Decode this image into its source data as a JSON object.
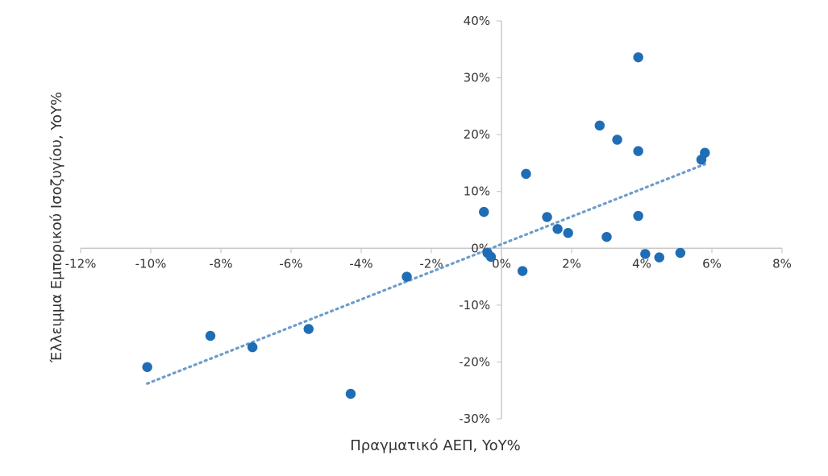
{
  "chart_data": {
    "type": "scatter",
    "xlabel": "Πραγματικό ΑΕΠ, YoY%",
    "ylabel": "Έλλειμμα Εμπορικού Ισοζυγίου, YoY%",
    "xlim": [
      -12,
      8
    ],
    "ylim": [
      -30,
      40
    ],
    "x_ticks": [
      -12,
      -10,
      -8,
      -6,
      -4,
      -2,
      0,
      2,
      4,
      6,
      8
    ],
    "y_ticks": [
      -30,
      -20,
      -10,
      0,
      10,
      20,
      30,
      40
    ],
    "x_tick_labels": [
      "-12%",
      "-10%",
      "-8%",
      "-6%",
      "-4%",
      "-2%",
      "0%",
      "2%",
      "4%",
      "6%",
      "8%"
    ],
    "y_tick_labels": [
      "-30%",
      "-20%",
      "-10%",
      "0%",
      "10%",
      "20%",
      "30%",
      "40%"
    ],
    "grid": false,
    "points": [
      {
        "x": -10.1,
        "y": -20.9
      },
      {
        "x": -8.3,
        "y": -15.4
      },
      {
        "x": -7.1,
        "y": -17.4
      },
      {
        "x": -5.5,
        "y": -14.2
      },
      {
        "x": -4.3,
        "y": -25.6
      },
      {
        "x": -2.7,
        "y": -5.0
      },
      {
        "x": -0.5,
        "y": 6.4
      },
      {
        "x": -0.4,
        "y": -0.8
      },
      {
        "x": -0.3,
        "y": -1.5
      },
      {
        "x": 0.6,
        "y": -4.0
      },
      {
        "x": 0.7,
        "y": 13.1
      },
      {
        "x": 1.3,
        "y": 5.5
      },
      {
        "x": 1.6,
        "y": 3.4
      },
      {
        "x": 1.9,
        "y": 2.7
      },
      {
        "x": 2.8,
        "y": 21.6
      },
      {
        "x": 3.0,
        "y": 2.0
      },
      {
        "x": 3.3,
        "y": 19.1
      },
      {
        "x": 3.9,
        "y": 33.6
      },
      {
        "x": 3.9,
        "y": 17.1
      },
      {
        "x": 3.9,
        "y": 5.7
      },
      {
        "x": 4.1,
        "y": -1.0
      },
      {
        "x": 4.5,
        "y": -1.6
      },
      {
        "x": 5.1,
        "y": -0.8
      },
      {
        "x": 5.7,
        "y": 15.6
      },
      {
        "x": 5.8,
        "y": 16.8
      }
    ],
    "trendline": {
      "style": "dotted",
      "x": [
        -10.1,
        5.8
      ],
      "y": [
        -23.8,
        14.8
      ]
    },
    "colors": {
      "points": "#1f6db5",
      "trendline": "#6d9ccc",
      "axes": "#c9c9c9",
      "text": "#333333"
    }
  }
}
